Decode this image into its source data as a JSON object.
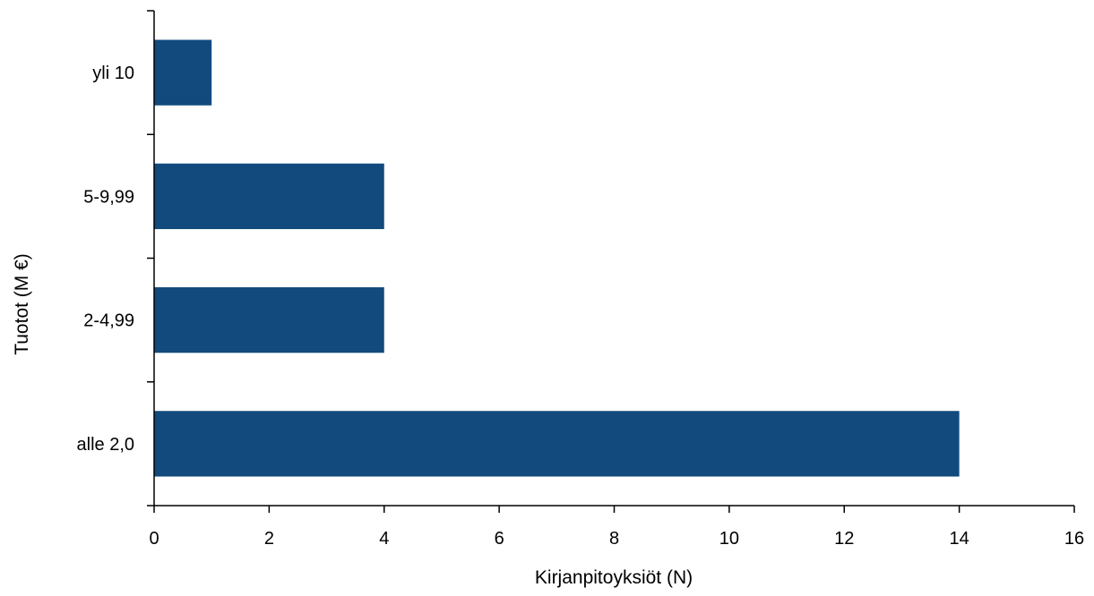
{
  "chart_data": {
    "type": "bar",
    "orientation": "horizontal",
    "categories": [
      "alle 2,0",
      "2-4,99",
      "5-9,99",
      "yli 10"
    ],
    "values": [
      14,
      4,
      4,
      1
    ],
    "xlabel": "Kirjanpitoyksiöt (N)",
    "ylabel": "Tuotot (M €)",
    "xlim": [
      0,
      16
    ],
    "xticks": [
      0,
      2,
      4,
      6,
      8,
      10,
      12,
      14,
      16
    ],
    "grid": false,
    "legend": "none",
    "colors": {
      "bar": "#124a7e",
      "axis": "#000000"
    }
  }
}
